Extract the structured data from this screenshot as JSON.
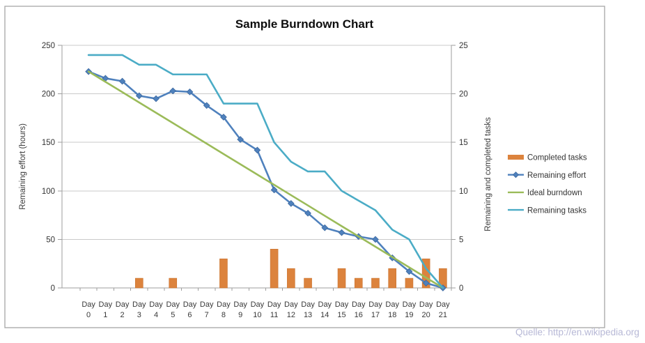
{
  "watermark": {
    "text": "Quelle: http://en.wikipedia.org",
    "color": "#b7b8d6"
  },
  "chart_data": {
    "type": "combo-bar-line",
    "title": "Sample Burndown Chart",
    "grid": true,
    "legend_position": "right",
    "x_axis": {
      "label_prefix": "Day",
      "days": [
        0,
        1,
        2,
        3,
        4,
        5,
        6,
        7,
        8,
        9,
        10,
        11,
        12,
        13,
        14,
        15,
        16,
        17,
        18,
        19,
        20,
        21
      ]
    },
    "y_left": {
      "title": "Remaining effort (hours)",
      "min": 0,
      "max": 250,
      "ticks": [
        0,
        50,
        100,
        150,
        200,
        250
      ]
    },
    "y_right": {
      "title": "Remaining and completed tasks",
      "min": 0,
      "max": 25,
      "ticks": [
        0,
        5,
        10,
        15,
        20,
        25
      ]
    },
    "series": [
      {
        "name": "Completed tasks",
        "type": "bar",
        "axis": "right",
        "color": "#dc833d",
        "edge_color": "#c97431",
        "values": [
          0,
          0,
          0,
          1,
          0,
          1,
          0,
          0,
          3,
          0,
          0,
          4,
          2,
          1,
          0,
          2,
          1,
          1,
          2,
          1,
          3,
          2
        ]
      },
      {
        "name": "Remaining effort",
        "type": "line",
        "axis": "left",
        "color": "#4f81bd",
        "marker": "diamond",
        "values": [
          223,
          216,
          213,
          198,
          195,
          203,
          202,
          188,
          176,
          153,
          142,
          101,
          87,
          77,
          62,
          57,
          53,
          50,
          31,
          17,
          5,
          0
        ]
      },
      {
        "name": "Ideal burndown",
        "type": "line",
        "axis": "left",
        "color": "#9bbb59",
        "values": [
          223,
          212.4,
          201.8,
          191.1,
          180.5,
          169.9,
          159.3,
          148.7,
          138.0,
          127.4,
          116.8,
          106.2,
          95.6,
          85.0,
          74.3,
          63.7,
          53.1,
          42.5,
          31.9,
          21.2,
          10.6,
          0
        ]
      },
      {
        "name": "Remaining tasks",
        "type": "line",
        "axis": "right",
        "color": "#4bacc6",
        "values": [
          24,
          24,
          24,
          23,
          23,
          22,
          22,
          22,
          19,
          19,
          19,
          15,
          13,
          12,
          12,
          10,
          9,
          8,
          6,
          5,
          2,
          0
        ]
      }
    ]
  }
}
